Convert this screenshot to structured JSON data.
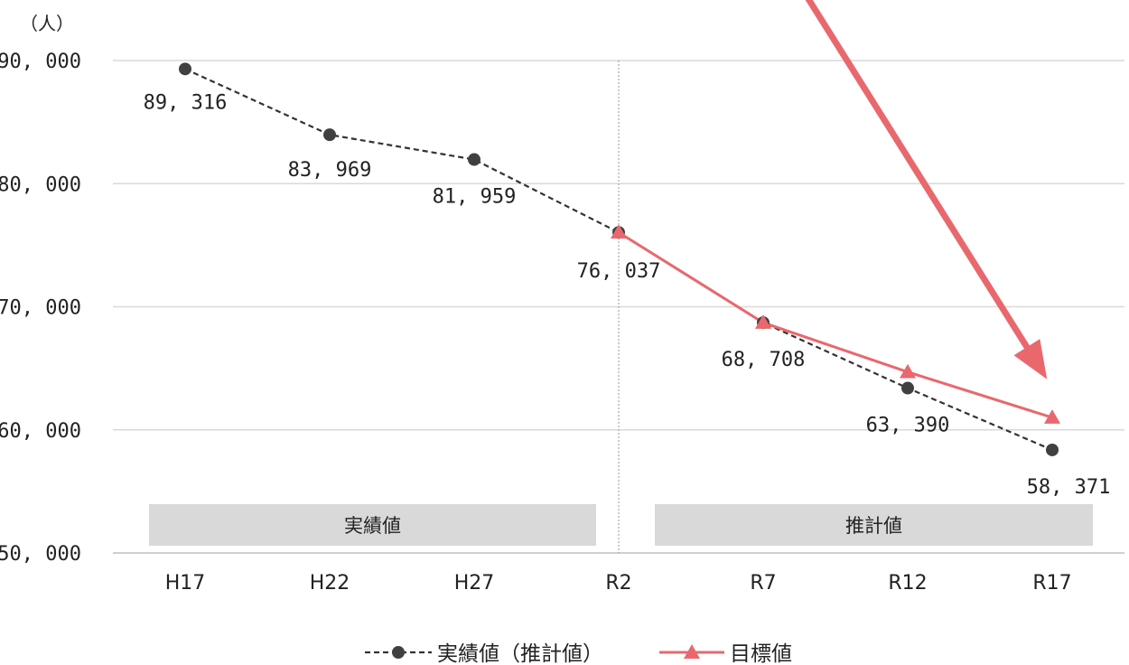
{
  "chart_data": {
    "type": "line",
    "unit_label": "（人）",
    "categories": [
      "H17",
      "H22",
      "H27",
      "R2",
      "R7",
      "R12",
      "R17"
    ],
    "ylim": [
      50000,
      90000
    ],
    "yticks": [
      50000,
      60000,
      70000,
      80000,
      90000
    ],
    "ytick_labels": [
      "50, 000",
      "60, 000",
      "70, 000",
      "80, 000",
      "90, 000"
    ],
    "grid": true,
    "legend_position": "bottom",
    "series": [
      {
        "name": "実績値（推計値）",
        "marker": "circle",
        "line_style": "dashed",
        "color": "#333333",
        "values": [
          89316,
          83969,
          81959,
          76037,
          68708,
          63390,
          58371
        ],
        "labels": [
          "89, 316",
          "83, 969",
          "81, 959",
          "76, 037",
          "68, 708",
          "63, 390",
          "58, 371"
        ]
      },
      {
        "name": "目標値",
        "marker": "triangle",
        "line_style": "solid",
        "color": "#e8686e",
        "start_index": 3,
        "values": [
          null,
          null,
          null,
          76037,
          68708,
          64700,
          61000
        ]
      }
    ],
    "bands": [
      {
        "label": "実績値",
        "from": 0,
        "to": 3
      },
      {
        "label": "推計値",
        "from": 3,
        "to": 6
      }
    ],
    "arrow_color": "#e8686e"
  }
}
